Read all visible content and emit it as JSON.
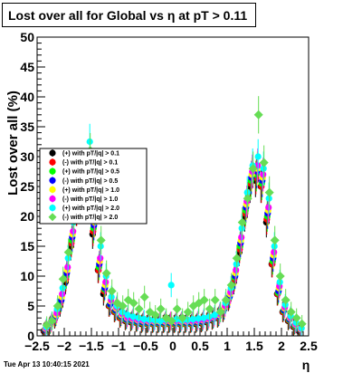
{
  "chart_data": {
    "type": "scatter",
    "title": "Lost over all for Global vs   η at pT > 0.11",
    "xlabel": "η",
    "ylabel": "Lost over all (%)",
    "xlim": [
      -2.5,
      2.5
    ],
    "ylim": [
      0,
      50
    ],
    "x_ticks": [
      "−2.5",
      "−2",
      "−1.5",
      "−1",
      "−0.5",
      "0",
      "0.5",
      "1",
      "1.5",
      "2",
      "2.5"
    ],
    "y_ticks": [
      "0",
      "5",
      "10",
      "15",
      "20",
      "25",
      "30",
      "35",
      "40",
      "45",
      "50"
    ],
    "grid": false,
    "legend_position": "left",
    "series": [
      {
        "name": "(+) with pT/|q| > 0.1",
        "color": "#000000",
        "marker": "circle",
        "x": [
          -2.35,
          -2.25,
          -2.15,
          -2.05,
          -1.95,
          -1.85,
          -1.75,
          -1.65,
          -1.55,
          -1.45,
          -1.35,
          -1.25,
          -1.15,
          -1.05,
          -0.95,
          -0.85,
          -0.75,
          -0.65,
          -0.55,
          -0.45,
          -0.35,
          -0.25,
          -0.15,
          -0.05,
          0.05,
          0.15,
          0.25,
          0.35,
          0.45,
          0.55,
          0.65,
          0.75,
          0.85,
          0.95,
          1.05,
          1.15,
          1.25,
          1.35,
          1.45,
          1.55,
          1.65,
          1.75,
          1.85,
          1.95,
          2.05,
          2.15,
          2.25,
          2.35
        ],
        "y": [
          0.8,
          1.5,
          2.8,
          5,
          9,
          15,
          21,
          23,
          22,
          17,
          11,
          7,
          5,
          4,
          3,
          2.5,
          2.3,
          2.2,
          2,
          2,
          2,
          2,
          2,
          2,
          2,
          2,
          2,
          2,
          2,
          2.1,
          2.3,
          2.6,
          3,
          4,
          6,
          9,
          14,
          20,
          25,
          26,
          25,
          19,
          12,
          7,
          4,
          2.5,
          1.5,
          0.8
        ]
      },
      {
        "name": "(-) with pT/|q| > 0.1",
        "color": "#ff0000",
        "marker": "circle",
        "x": [
          -2.35,
          -2.25,
          -2.15,
          -2.05,
          -1.95,
          -1.85,
          -1.75,
          -1.65,
          -1.55,
          -1.45,
          -1.35,
          -1.25,
          -1.15,
          -1.05,
          -0.95,
          -0.85,
          -0.75,
          -0.65,
          -0.55,
          -0.45,
          -0.35,
          -0.25,
          -0.15,
          -0.05,
          0.05,
          0.15,
          0.25,
          0.35,
          0.45,
          0.55,
          0.65,
          0.75,
          0.85,
          0.95,
          1.05,
          1.15,
          1.25,
          1.35,
          1.45,
          1.55,
          1.65,
          1.75,
          1.85,
          1.95,
          2.05,
          2.15,
          2.25,
          2.35
        ],
        "y": [
          0.9,
          1.7,
          3,
          5.5,
          9.5,
          15.5,
          21,
          23.5,
          22.5,
          17.5,
          11,
          7.5,
          5,
          4,
          3,
          2.6,
          2.4,
          2.2,
          2.1,
          2,
          2,
          2,
          2,
          2,
          2,
          2,
          2,
          2,
          2.1,
          2.2,
          2.4,
          2.7,
          3.1,
          4.2,
          6.2,
          9.5,
          14.5,
          20.5,
          25.5,
          26.5,
          25,
          19.5,
          12,
          7,
          4,
          2.6,
          1.6,
          0.9
        ]
      },
      {
        "name": "(+) with pT/|q| > 0.5",
        "color": "#00ff00",
        "marker": "circle",
        "x": [
          -2.35,
          -2.25,
          -2.15,
          -2.05,
          -1.95,
          -1.85,
          -1.75,
          -1.65,
          -1.55,
          -1.45,
          -1.35,
          -1.25,
          -1.15,
          -1.05,
          -0.95,
          -0.85,
          -0.75,
          -0.65,
          -0.55,
          -0.45,
          -0.35,
          -0.25,
          -0.15,
          -0.05,
          0.05,
          0.15,
          0.25,
          0.35,
          0.45,
          0.55,
          0.65,
          0.75,
          0.85,
          0.95,
          1.05,
          1.15,
          1.25,
          1.35,
          1.45,
          1.55,
          1.65,
          1.75,
          1.85,
          1.95,
          2.05,
          2.15,
          2.25,
          2.35
        ],
        "y": [
          1,
          1.8,
          3.2,
          5.8,
          10,
          16,
          21.5,
          24,
          23,
          18,
          11.5,
          7.8,
          5.2,
          4.2,
          3.2,
          2.7,
          2.5,
          2.3,
          2.2,
          2.1,
          2.1,
          2.1,
          2.1,
          2.1,
          2.1,
          2.1,
          2.1,
          2.1,
          2.2,
          2.3,
          2.5,
          2.8,
          3.2,
          4.4,
          6.4,
          9.8,
          15,
          21,
          26,
          27,
          25.5,
          20,
          12.5,
          7.2,
          4.2,
          2.7,
          1.7,
          1
        ]
      },
      {
        "name": "(-) with pT/|q| > 0.5",
        "color": "#0000ff",
        "marker": "circle",
        "x": [
          -2.35,
          -2.25,
          -2.15,
          -2.05,
          -1.95,
          -1.85,
          -1.75,
          -1.65,
          -1.55,
          -1.45,
          -1.35,
          -1.25,
          -1.15,
          -1.05,
          -0.95,
          -0.85,
          -0.75,
          -0.65,
          -0.55,
          -0.45,
          -0.35,
          -0.25,
          -0.15,
          -0.05,
          0.05,
          0.15,
          0.25,
          0.35,
          0.45,
          0.55,
          0.65,
          0.75,
          0.85,
          0.95,
          1.05,
          1.15,
          1.25,
          1.35,
          1.45,
          1.55,
          1.65,
          1.75,
          1.85,
          1.95,
          2.05,
          2.15,
          2.25,
          2.35
        ],
        "y": [
          1,
          1.9,
          3.3,
          6,
          10.5,
          16.5,
          22,
          24.5,
          23.5,
          18.5,
          12,
          8,
          5.3,
          4.3,
          3.3,
          2.8,
          2.6,
          2.4,
          2.3,
          2.2,
          2.2,
          2.2,
          2.2,
          2.2,
          2.2,
          2.2,
          2.2,
          2.2,
          2.3,
          2.4,
          2.6,
          2.9,
          3.3,
          4.5,
          6.6,
          10,
          15.5,
          21.5,
          26.5,
          27.5,
          26,
          20.5,
          13,
          7.5,
          4.3,
          2.8,
          1.8,
          1
        ]
      },
      {
        "name": "(+) with pT/|q| > 1.0",
        "color": "#ffff00",
        "marker": "circle",
        "x": [
          -2.35,
          -2.25,
          -2.15,
          -2.05,
          -1.95,
          -1.85,
          -1.75,
          -1.65,
          -1.55,
          -1.45,
          -1.35,
          -1.25,
          -1.15,
          -1.05,
          -0.95,
          -0.85,
          -0.75,
          -0.65,
          -0.55,
          -0.45,
          -0.35,
          -0.25,
          -0.15,
          -0.05,
          0.05,
          0.15,
          0.25,
          0.35,
          0.45,
          0.55,
          0.65,
          0.75,
          0.85,
          0.95,
          1.05,
          1.15,
          1.25,
          1.35,
          1.45,
          1.55,
          1.65,
          1.75,
          1.85,
          1.95,
          2.05,
          2.15,
          2.25,
          2.35
        ],
        "y": [
          1.2,
          2,
          3.5,
          6.5,
          11,
          17,
          23,
          25,
          24,
          19,
          12.5,
          8.5,
          5.8,
          4.6,
          3.5,
          3,
          2.8,
          2.6,
          2.5,
          2.4,
          2.4,
          2.4,
          2.4,
          2.4,
          2.4,
          2.4,
          2.4,
          2.4,
          2.5,
          2.6,
          2.8,
          3.1,
          3.5,
          4.8,
          7,
          10.5,
          16,
          22,
          27,
          28,
          26.5,
          21,
          13.5,
          8,
          4.6,
          3,
          1.9,
          1.1
        ]
      },
      {
        "name": "(-) with pT/|q| > 1.0",
        "color": "#ff00ff",
        "marker": "circle",
        "x": [
          -2.35,
          -2.25,
          -2.15,
          -2.05,
          -1.95,
          -1.85,
          -1.75,
          -1.65,
          -1.55,
          -1.45,
          -1.35,
          -1.25,
          -1.15,
          -1.05,
          -0.95,
          -0.85,
          -0.75,
          -0.65,
          -0.55,
          -0.45,
          -0.35,
          -0.25,
          -0.15,
          -0.05,
          0.05,
          0.15,
          0.25,
          0.35,
          0.45,
          0.55,
          0.65,
          0.75,
          0.85,
          0.95,
          1.05,
          1.15,
          1.25,
          1.35,
          1.45,
          1.55,
          1.65,
          1.75,
          1.85,
          1.95,
          2.05,
          2.15,
          2.25,
          2.35
        ],
        "y": [
          1.3,
          2.2,
          3.8,
          7,
          11.5,
          17.5,
          23.5,
          25.5,
          24.5,
          19.5,
          13,
          9,
          6,
          4.8,
          3.7,
          3.1,
          2.9,
          2.7,
          2.6,
          2.5,
          2.5,
          2.5,
          2.5,
          2.5,
          2.5,
          2.5,
          2.5,
          2.5,
          2.6,
          2.7,
          2.9,
          3.2,
          3.7,
          5,
          7.3,
          11,
          16.5,
          22.5,
          27.5,
          28.5,
          27,
          21.5,
          14,
          8.3,
          4.8,
          3.1,
          2,
          1.2
        ]
      },
      {
        "name": "(+) with pT/|q| > 2.0",
        "color": "#00ffff",
        "marker": "circle",
        "x": [
          -2.35,
          -2.25,
          -2.15,
          -2.05,
          -1.95,
          -1.85,
          -1.75,
          -1.65,
          -1.55,
          -1.45,
          -1.35,
          -1.25,
          -1.15,
          -1.05,
          -0.95,
          -0.85,
          -0.75,
          -0.65,
          -0.55,
          -0.45,
          -0.35,
          -0.25,
          -0.15,
          -0.05,
          0.05,
          0.15,
          0.25,
          0.35,
          0.45,
          0.55,
          0.65,
          0.75,
          0.85,
          0.95,
          1.05,
          1.15,
          1.25,
          1.35,
          1.45,
          1.55,
          1.65,
          1.75,
          1.85,
          1.95,
          2.05,
          2.15,
          2.25,
          2.35
        ],
        "y": [
          1.5,
          2.5,
          4.5,
          8,
          13,
          19,
          25,
          27,
          32.5,
          21,
          15,
          10,
          6.5,
          5,
          4,
          3.5,
          3.2,
          3,
          2.8,
          2.7,
          2.6,
          2.5,
          2.7,
          8.5,
          2.8,
          2.6,
          2.7,
          2.8,
          2.9,
          3,
          3.2,
          3.5,
          4,
          5.5,
          8,
          12,
          18,
          24,
          28.5,
          30,
          28,
          23,
          15,
          9,
          5.2,
          3.3,
          2.2,
          1.3
        ]
      },
      {
        "name": "(-) with pT/|q| > 2.0",
        "color": "#66dd55",
        "marker": "diamond",
        "x": [
          -2.35,
          -2.25,
          -2.15,
          -2.05,
          -1.95,
          -1.85,
          -1.75,
          -1.65,
          -1.55,
          -1.45,
          -1.35,
          -1.25,
          -1.15,
          -1.05,
          -0.95,
          -0.85,
          -0.75,
          -0.65,
          -0.55,
          -0.45,
          -0.35,
          -0.25,
          -0.15,
          -0.05,
          0.05,
          0.15,
          0.25,
          0.35,
          0.45,
          0.55,
          0.65,
          0.75,
          0.85,
          0.95,
          1.05,
          1.15,
          1.25,
          1.35,
          1.45,
          1.55,
          1.65,
          1.75,
          1.85,
          1.95,
          2.05,
          2.15,
          2.25,
          2.35
        ],
        "y": [
          1.8,
          2.5,
          5,
          9.5,
          14,
          20,
          24,
          26,
          31,
          22,
          16,
          10.5,
          7.5,
          5.5,
          5,
          6,
          5.5,
          4.5,
          6.5,
          4,
          3.5,
          4.5,
          3,
          2.5,
          4.5,
          3,
          4,
          5,
          5.5,
          6,
          4.5,
          6,
          4,
          6,
          8.5,
          13,
          19,
          23,
          28,
          37,
          29,
          24,
          16,
          10,
          6,
          4,
          3,
          2
        ]
      }
    ]
  },
  "timestamp": "Tue Apr 13 10:40:15 2021"
}
